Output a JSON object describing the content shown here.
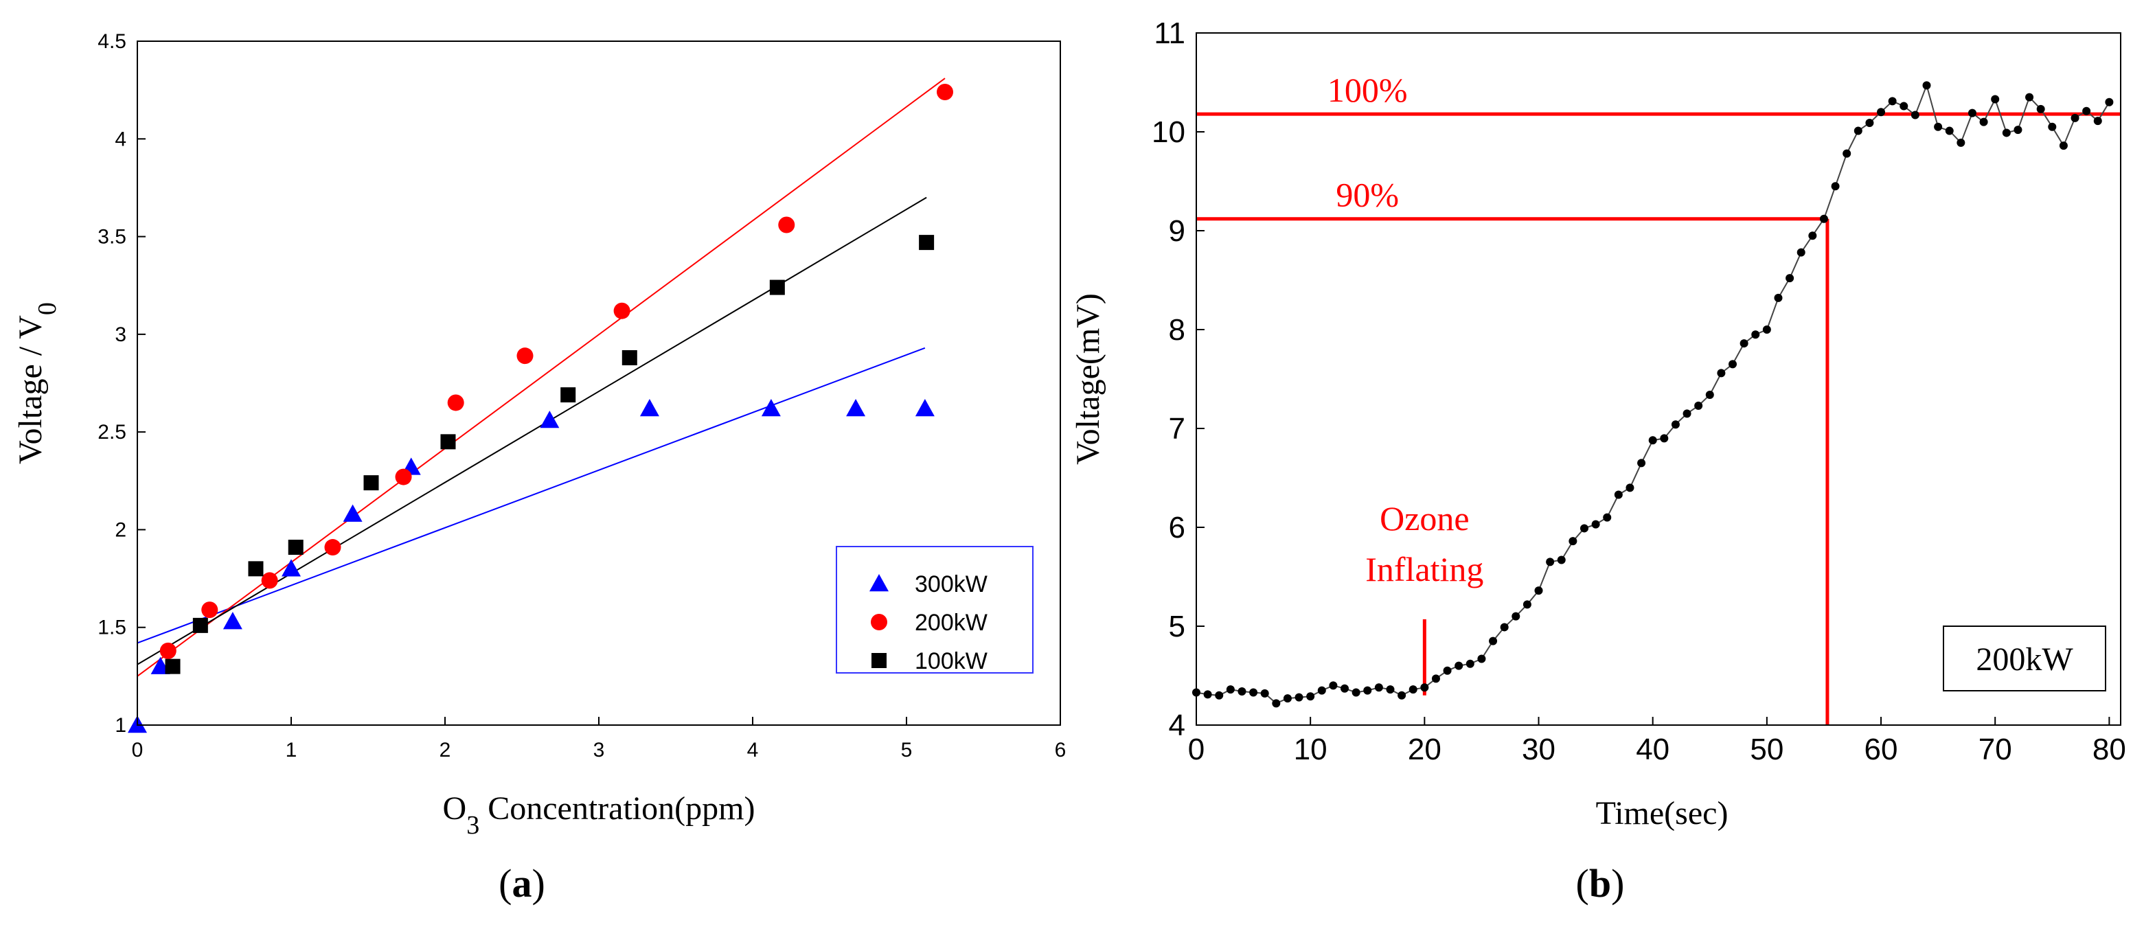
{
  "chart_data": [
    {
      "type": "scatter",
      "panel_label": "a",
      "xlabel": {
        "main": "O",
        "sub": "3",
        "rest": " Concentration(ppm)"
      },
      "ylabel": {
        "main": "Voltage / V",
        "sub": "0"
      },
      "xlim": [
        0,
        6
      ],
      "ylim": [
        1.0,
        4.5
      ],
      "x_ticks": [
        0,
        1,
        2,
        3,
        4,
        5,
        6
      ],
      "y_ticks": [
        1.0,
        1.5,
        2.0,
        2.5,
        3.0,
        3.5,
        4.0,
        4.5
      ],
      "legend_position": "bottom-right",
      "series": [
        {
          "name": "300kW",
          "marker": "triangle",
          "color": "#0000ff",
          "x": [
            0.0,
            0.15,
            0.62,
            1.0,
            1.4,
            1.78,
            2.68,
            3.33,
            4.12,
            4.67,
            5.12
          ],
          "y": [
            1.0,
            1.3,
            1.53,
            1.8,
            2.08,
            2.32,
            2.56,
            2.62,
            2.62,
            2.62,
            2.62
          ],
          "fit": {
            "x": [
              0,
              5.12
            ],
            "y": [
              1.42,
              2.93
            ]
          }
        },
        {
          "name": "200kW",
          "marker": "circle",
          "color": "#ff0000",
          "x": [
            0.2,
            0.47,
            0.86,
            1.27,
            1.73,
            2.07,
            2.52,
            3.15,
            4.22,
            5.25
          ],
          "y": [
            1.38,
            1.59,
            1.74,
            1.91,
            2.27,
            2.65,
            2.89,
            3.12,
            3.56,
            4.24
          ],
          "fit": {
            "x": [
              0,
              5.25
            ],
            "y": [
              1.25,
              4.31
            ]
          }
        },
        {
          "name": "100kW",
          "marker": "square",
          "color": "#000000",
          "x": [
            0.23,
            0.41,
            0.77,
            1.03,
            1.52,
            2.02,
            2.8,
            3.2,
            4.16,
            5.13
          ],
          "y": [
            1.3,
            1.51,
            1.8,
            1.91,
            2.24,
            2.45,
            2.69,
            2.88,
            3.24,
            3.47
          ],
          "fit": {
            "x": [
              0,
              5.13
            ],
            "y": [
              1.31,
              3.7
            ]
          }
        }
      ]
    },
    {
      "type": "line",
      "panel_label": "b",
      "xlabel": "Time(sec)",
      "ylabel": "Voltage(mV)",
      "xlim": [
        0,
        81
      ],
      "ylim": [
        4,
        11
      ],
      "x_ticks": [
        0,
        10,
        20,
        30,
        40,
        50,
        60,
        70,
        80
      ],
      "y_ticks": [
        4,
        5,
        6,
        7,
        8,
        9,
        10,
        11
      ],
      "inset_label": "200kW",
      "line_color": "#444444",
      "marker_color": "#000000",
      "series": [
        {
          "name": "200kW",
          "x": [
            0,
            1,
            2,
            3,
            4,
            5,
            6,
            7,
            8,
            9,
            10,
            11,
            12,
            13,
            14,
            15,
            16,
            17,
            18,
            19,
            20,
            21,
            22,
            23,
            24,
            25,
            26,
            27,
            28,
            29,
            30,
            31,
            32,
            33,
            34,
            35,
            36,
            37,
            38,
            39,
            40,
            41,
            42,
            43,
            44,
            45,
            46,
            47,
            48,
            49,
            50,
            51,
            52,
            53,
            54,
            55,
            56,
            57,
            58,
            59,
            60,
            61,
            62,
            63,
            64,
            65,
            66,
            67,
            68,
            69,
            70,
            71,
            72,
            73,
            74,
            75,
            76,
            77,
            78,
            79,
            80
          ],
          "y": [
            4.33,
            4.31,
            4.3,
            4.36,
            4.34,
            4.33,
            4.32,
            4.22,
            4.27,
            4.28,
            4.29,
            4.35,
            4.4,
            4.37,
            4.33,
            4.35,
            4.38,
            4.36,
            4.3,
            4.36,
            4.38,
            4.47,
            4.55,
            4.6,
            4.62,
            4.67,
            4.85,
            4.99,
            5.1,
            5.22,
            5.36,
            5.65,
            5.67,
            5.86,
            5.99,
            6.03,
            6.1,
            6.33,
            6.4,
            6.65,
            6.88,
            6.9,
            7.04,
            7.15,
            7.23,
            7.34,
            7.56,
            7.65,
            7.86,
            7.95,
            8.0,
            8.32,
            8.52,
            8.78,
            8.95,
            9.12,
            9.45,
            9.78,
            10.01,
            10.09,
            10.2,
            10.31,
            10.26,
            10.17,
            10.47,
            10.05,
            10.01,
            9.89,
            10.19,
            10.1,
            10.33,
            9.99,
            10.02,
            10.35,
            10.23,
            10.05,
            9.86,
            10.14,
            10.21,
            10.11,
            10.3
          ]
        }
      ],
      "annotations": [
        {
          "type": "hline",
          "y": 10.18,
          "x_from": 0,
          "x_to": 81,
          "label": "100%",
          "label_x": 15,
          "color": "#ff0000"
        },
        {
          "type": "hline",
          "y": 9.12,
          "x_from": 0,
          "x_to": 55.3,
          "label": "90%",
          "label_x": 15,
          "color": "#ff0000"
        },
        {
          "type": "vline",
          "x": 55.3,
          "y_from": 4,
          "y_to": 9.12,
          "color": "#ff0000"
        },
        {
          "type": "vline",
          "x": 20,
          "y_from": 4.3,
          "y_to": 5.07,
          "label_line1": "Ozone",
          "label_line2": "Inflating",
          "label_x": 20,
          "color": "#ff0000"
        }
      ]
    }
  ]
}
